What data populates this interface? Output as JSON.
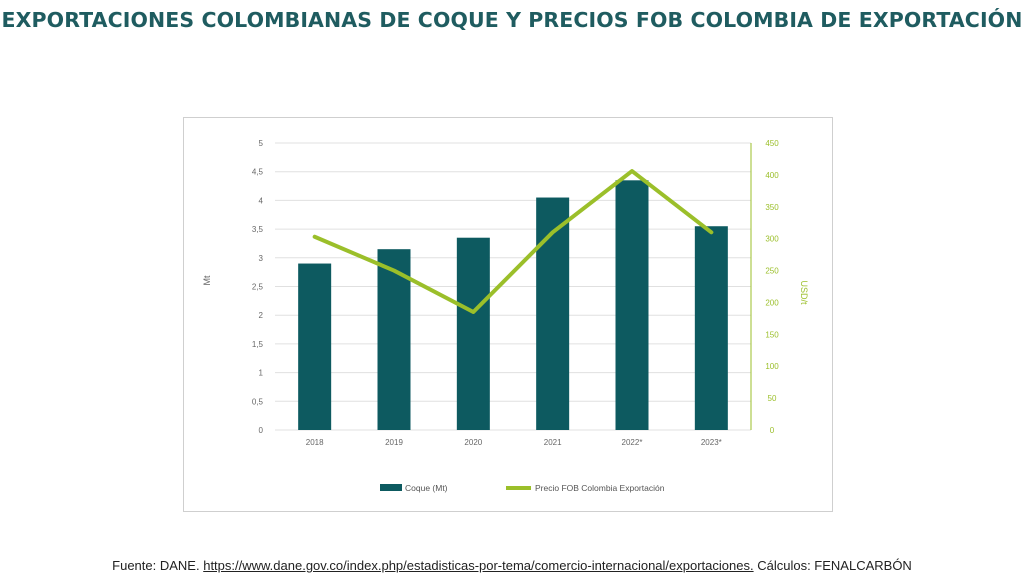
{
  "page": {
    "title": "EXPORTACIONES COLOMBIANAS DE COQUE Y PRECIOS FOB COLOMBIA DE EXPORTACIÓN",
    "source_prefix": "Fuente: DANE.",
    "source_link": "https://www.dane.gov.co/index.php/estadisticas-por-tema/comercio-internacional/exportaciones.",
    "source_suffix": "Cálculos: FENALCARBÓN"
  },
  "colors": {
    "bar": "#0d5a60",
    "line": "#9bbf2a",
    "title": "#1f5c60",
    "grid": "#e0e0e0",
    "axis_text": "#666666",
    "right_axis_text": "#9bbf2a"
  },
  "chart_data": {
    "type": "bar",
    "categories": [
      "2018",
      "2019",
      "2020",
      "2021",
      "2022*",
      "2023*"
    ],
    "series": [
      {
        "name": "Coque (Mt)",
        "type": "bar",
        "axis": "left",
        "values": [
          2.9,
          3.15,
          3.35,
          4.05,
          4.35,
          3.55
        ]
      },
      {
        "name": "Precio FOB Colombia Exportación",
        "type": "line",
        "axis": "right",
        "values": [
          303,
          250,
          185,
          310,
          406,
          310
        ]
      }
    ],
    "ylabel": "Mt",
    "y2label": "USD/t",
    "ylim": [
      0,
      5
    ],
    "y2lim": [
      0,
      450
    ],
    "yticks": [
      "0",
      "0,5",
      "1",
      "1,5",
      "2",
      "2,5",
      "3",
      "3,5",
      "4",
      "4,5",
      "5"
    ],
    "y2ticks": [
      "0",
      "50",
      "100",
      "150",
      "200",
      "250",
      "300",
      "350",
      "400",
      "450"
    ],
    "grid": true,
    "legend_position": "bottom"
  }
}
